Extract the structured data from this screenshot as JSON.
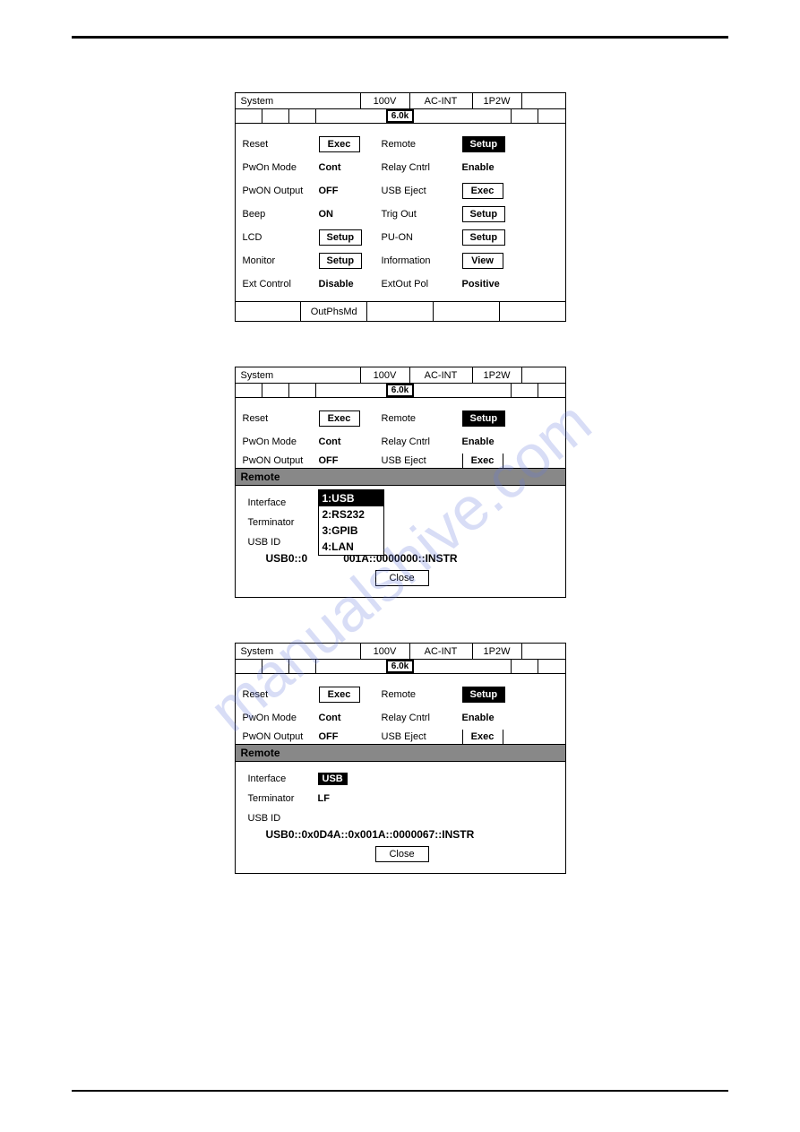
{
  "watermark": "manualshive.com",
  "panel1": {
    "title": {
      "system": "System",
      "v100": "100V",
      "acint": "AC-INT",
      "p2w": "1P2W"
    },
    "badge": "6.0k",
    "rows": [
      {
        "l": "Reset",
        "v": "Exec",
        "vbtn": true,
        "l2": "Remote",
        "v2": "Setup",
        "v2btn": true,
        "v2sel": true
      },
      {
        "l": "PwOn Mode",
        "v": "Cont",
        "vbtn": false,
        "l2": "Relay Cntrl",
        "v2": "Enable",
        "v2btn": false
      },
      {
        "l": "PwON Output",
        "v": "OFF",
        "vbtn": false,
        "l2": "USB Eject",
        "v2": "Exec",
        "v2btn": true
      },
      {
        "l": "Beep",
        "v": "ON",
        "vbtn": false,
        "l2": "Trig Out",
        "v2": "Setup",
        "v2btn": true
      },
      {
        "l": "LCD",
        "v": "Setup",
        "vbtn": true,
        "l2": "PU-ON",
        "v2": "Setup",
        "v2btn": true
      },
      {
        "l": "Monitor",
        "v": "Setup",
        "vbtn": true,
        "l2": "Information",
        "v2": "View",
        "v2btn": true
      },
      {
        "l": "Ext Control",
        "v": "Disable",
        "vbtn": false,
        "l2": "ExtOut Pol",
        "v2": "Positive",
        "v2btn": false
      }
    ],
    "foot": [
      "",
      "OutPhsMd",
      "",
      "",
      ""
    ]
  },
  "panel2": {
    "title": {
      "system": "System",
      "v100": "100V",
      "acint": "AC-INT",
      "p2w": "1P2W"
    },
    "badge": "6.0k",
    "rows": [
      {
        "l": "Reset",
        "v": "Exec",
        "vbtn": true,
        "l2": "Remote",
        "v2": "Setup",
        "v2btn": true,
        "v2sel": true
      },
      {
        "l": "PwOn Mode",
        "v": "Cont",
        "vbtn": false,
        "l2": "Relay Cntrl",
        "v2": "Enable",
        "v2btn": false
      }
    ],
    "partial": {
      "l": "PwON Output",
      "v": "OFF",
      "l2": "USB Eject",
      "v2": "Exec"
    },
    "popup": {
      "title": "Remote",
      "interface_lbl": "Interface",
      "interface_val": "USB",
      "terminator_lbl": "Terminator",
      "usbid_lbl": "USB ID",
      "usbid_val_left": "USB0::0",
      "usbid_val_right": "001A::0000000::INSTR",
      "options": [
        "1:USB",
        "2:RS232",
        "3:GPIB",
        "4:LAN"
      ],
      "close": "Close"
    }
  },
  "panel3": {
    "title": {
      "system": "System",
      "v100": "100V",
      "acint": "AC-INT",
      "p2w": "1P2W"
    },
    "badge": "6.0k",
    "rows": [
      {
        "l": "Reset",
        "v": "Exec",
        "vbtn": true,
        "l2": "Remote",
        "v2": "Setup",
        "v2btn": true,
        "v2sel": true
      },
      {
        "l": "PwOn Mode",
        "v": "Cont",
        "vbtn": false,
        "l2": "Relay Cntrl",
        "v2": "Enable",
        "v2btn": false
      }
    ],
    "partial": {
      "l": "PwON Output",
      "v": "OFF",
      "l2": "USB Eject",
      "v2": "Exec"
    },
    "popup": {
      "title": "Remote",
      "interface_lbl": "Interface",
      "interface_val": "USB",
      "terminator_lbl": "Terminator",
      "terminator_val": "LF",
      "usbid_lbl": "USB ID",
      "usbid_val": "USB0::0x0D4A::0x001A::0000067::INSTR",
      "close": "Close"
    }
  }
}
